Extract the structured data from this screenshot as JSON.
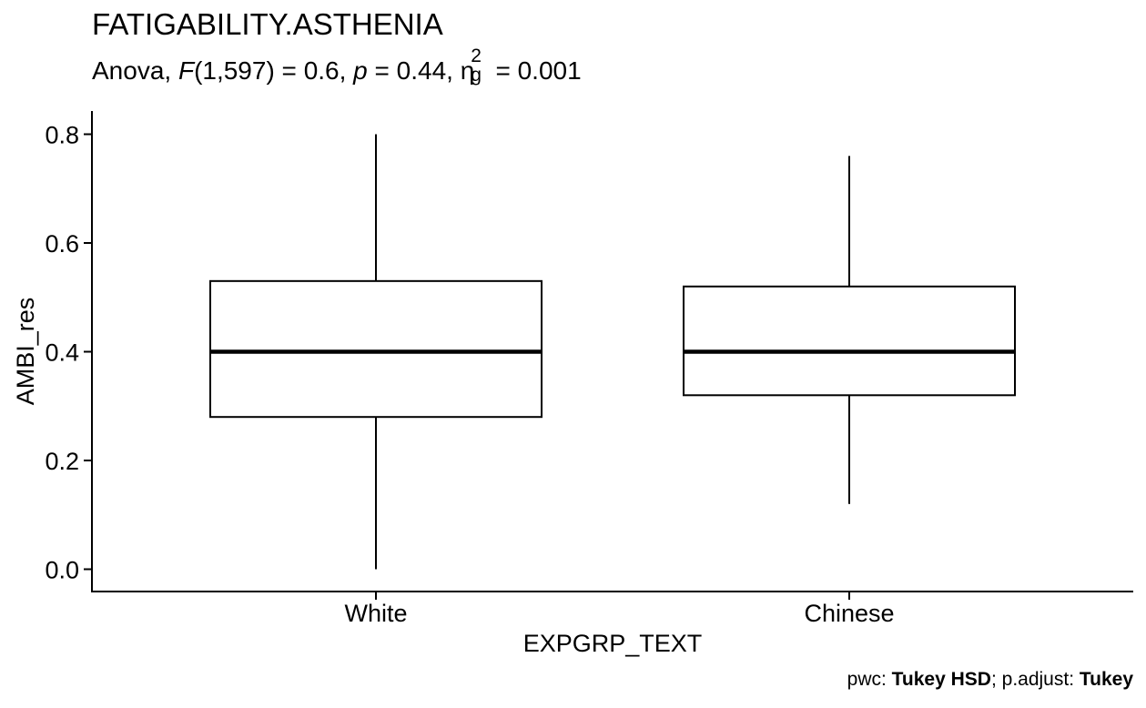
{
  "chart_data": {
    "type": "box",
    "title": "FATIGABILITY.ASTHENIA",
    "subtitle": {
      "prefix": "Anova, ",
      "stat_symbol": "F",
      "stat_value": "(1,597) = 0.6, ",
      "p_symbol": "p",
      "p_value": " = 0.44, ",
      "effect_symbol": "η",
      "effect_sup": "2",
      "effect_sub": "g",
      "effect_value": " = 0.001"
    },
    "caption": {
      "pwc_label": "pwc: ",
      "pwc_value": "Tukey HSD",
      "adjust_label": "; p.adjust: ",
      "adjust_value": "Tukey"
    },
    "xlabel": "EXPGRP_TEXT",
    "ylabel": "AMBI_res",
    "ylim": [
      0,
      0.8
    ],
    "yticks": [
      0.0,
      0.2,
      0.4,
      0.6,
      0.8
    ],
    "ytick_labels": [
      "0.0",
      "0.2",
      "0.4",
      "0.6",
      "0.8"
    ],
    "categories": [
      "White",
      "Chinese"
    ],
    "boxes": [
      {
        "category": "White",
        "min": 0.0,
        "q1": 0.28,
        "median": 0.4,
        "q3": 0.53,
        "max": 0.8
      },
      {
        "category": "Chinese",
        "min": 0.12,
        "q1": 0.32,
        "median": 0.4,
        "q3": 0.52,
        "max": 0.76
      }
    ],
    "grid": false,
    "legend": "none"
  }
}
